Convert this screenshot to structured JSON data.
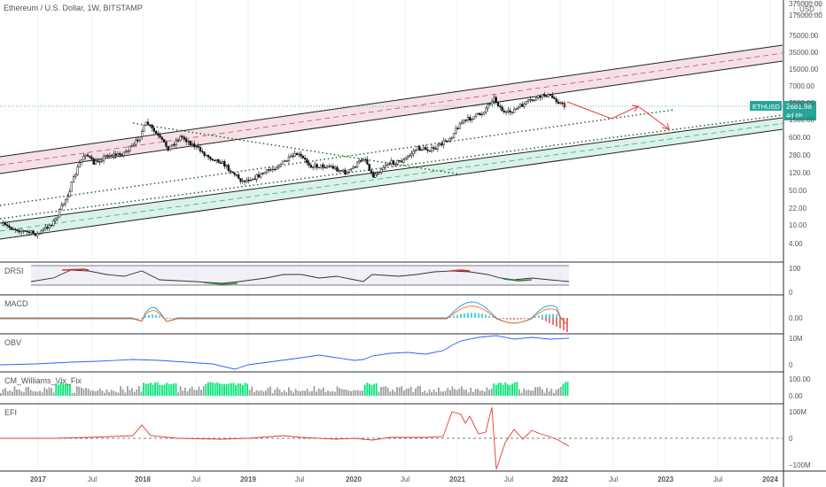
{
  "title": "Ethereum / U.S. Dollar, 1W, BITSTAMP",
  "currency_button": "USD",
  "symbol_badge": {
    "symbol": "ETHUSD",
    "price": "2681.98",
    "countdown": "4d 6h"
  },
  "price_axis_labels": [
    "375000.00",
    "175000.00",
    "75000.00",
    "35000.00",
    "15000.00",
    "7000.00",
    "3500.00",
    "1500.00",
    "600.00",
    "280.00",
    "120.00",
    "50.00",
    "22.00",
    "10.00",
    "4.00"
  ],
  "time_axis_labels": [
    "2017",
    "Jul",
    "2018",
    "Jul",
    "2019",
    "Jul",
    "2020",
    "Jul",
    "2021",
    "Jul",
    "2022",
    "Jul",
    "2023",
    "Jul",
    "2024"
  ],
  "panes": [
    {
      "name": "DRSI",
      "ticks": [
        "100",
        "0"
      ]
    },
    {
      "name": "MACD",
      "ticks": [
        "0.00"
      ]
    },
    {
      "name": "OBV",
      "ticks": [
        "10M",
        "0"
      ]
    },
    {
      "name": "CM_Williams_Vix_Fix",
      "ticks": [
        "100.00",
        "0.00"
      ]
    },
    {
      "name": "EFI",
      "ticks": [
        "100M",
        "0",
        "−100M"
      ]
    }
  ],
  "chart_data": {
    "type": "candlestick",
    "scale": "log",
    "interval": "1W",
    "series": [
      {
        "name": "ETHUSD",
        "x": [
          "2016-09-01",
          "2016-11-15",
          "2017-01-01",
          "2017-03-01",
          "2017-04-15",
          "2017-05-25",
          "2017-06-15",
          "2017-07-15",
          "2017-09-01",
          "2017-10-15",
          "2017-12-01",
          "2018-01-15",
          "2018-02-15",
          "2018-04-01",
          "2018-05-15",
          "2018-07-01",
          "2018-08-15",
          "2018-10-01",
          "2018-12-15",
          "2019-02-01",
          "2019-04-01",
          "2019-06-25",
          "2019-08-15",
          "2019-10-15",
          "2019-12-15",
          "2020-02-15",
          "2020-03-15",
          "2020-05-01",
          "2020-07-01",
          "2020-08-15",
          "2020-10-15",
          "2020-12-15",
          "2021-01-15",
          "2021-02-20",
          "2021-04-01",
          "2021-05-10",
          "2021-06-20",
          "2021-08-01",
          "2021-09-10",
          "2021-11-10",
          "2021-12-15",
          "2022-01-15"
        ],
        "values": [
          12,
          9,
          8,
          15,
          50,
          200,
          330,
          200,
          300,
          300,
          450,
          1300,
          800,
          400,
          700,
          450,
          280,
          220,
          90,
          110,
          160,
          310,
          180,
          180,
          130,
          270,
          110,
          200,
          230,
          400,
          380,
          700,
          1300,
          1600,
          2000,
          4100,
          1900,
          2500,
          3400,
          4700,
          3700,
          2680
        ]
      }
    ],
    "current_price": 2681.98,
    "channels": [
      {
        "name": "upper",
        "fill": "#f0d0d8"
      },
      {
        "name": "lower",
        "fill": "#cfeee2"
      }
    ],
    "indicators": [
      "DRSI",
      "MACD",
      "OBV",
      "CM_Williams_Vix_Fix",
      "EFI"
    ]
  }
}
